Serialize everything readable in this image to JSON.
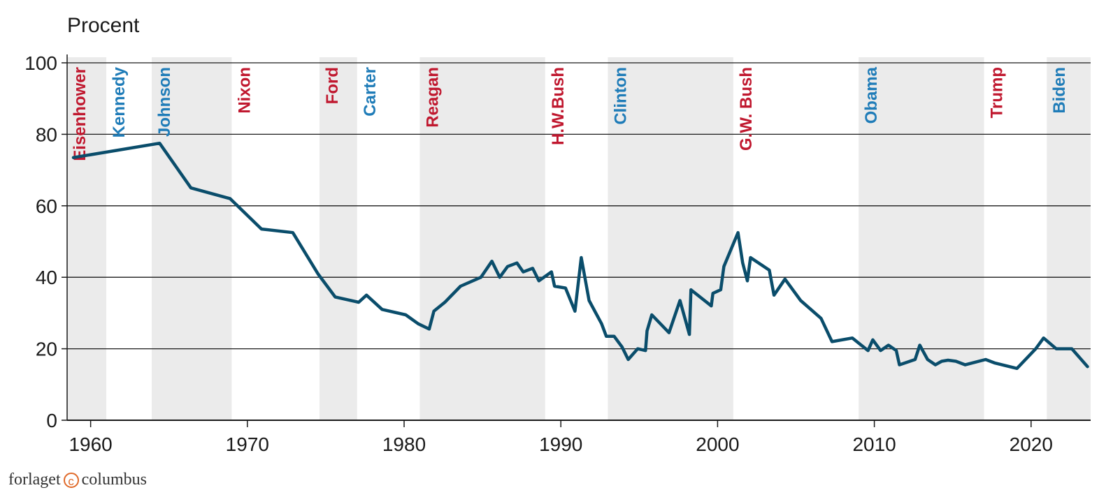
{
  "chart_data": {
    "type": "line",
    "ylabel": "Procent",
    "ylim": [
      0,
      100
    ],
    "xlim": [
      1958.5,
      2023.8
    ],
    "yticks": [
      0,
      20,
      40,
      60,
      80,
      100
    ],
    "xticks": [
      1960,
      1970,
      1980,
      1990,
      2000,
      2010,
      2020
    ],
    "grid": true,
    "colors": {
      "line": "#0a4d6b",
      "republican": "#c0182f",
      "democrat": "#1f7cb8",
      "shade": "#ebebeb"
    },
    "presidents": [
      {
        "name": "Eisenhower",
        "start": 1958.5,
        "end": 1961.0,
        "party": "republican",
        "shaded": true
      },
      {
        "name": "Kennedy",
        "start": 1961.0,
        "end": 1963.9,
        "party": "democrat",
        "shaded": false
      },
      {
        "name": "Johnson",
        "start": 1963.9,
        "end": 1969.0,
        "party": "democrat",
        "shaded": true
      },
      {
        "name": "Nixon",
        "start": 1969.0,
        "end": 1974.6,
        "party": "republican",
        "shaded": false
      },
      {
        "name": "Ford",
        "start": 1974.6,
        "end": 1977.0,
        "party": "republican",
        "shaded": true
      },
      {
        "name": "Carter",
        "start": 1977.0,
        "end": 1981.0,
        "party": "democrat",
        "shaded": false
      },
      {
        "name": "Reagan",
        "start": 1981.0,
        "end": 1989.0,
        "party": "republican",
        "shaded": true
      },
      {
        "name": "H.W.Bush",
        "start": 1989.0,
        "end": 1993.0,
        "party": "republican",
        "shaded": false
      },
      {
        "name": "Clinton",
        "start": 1993.0,
        "end": 2001.0,
        "party": "democrat",
        "shaded": true
      },
      {
        "name": "G.W. Bush",
        "start": 2001.0,
        "end": 2009.0,
        "party": "republican",
        "shaded": false
      },
      {
        "name": "Obama",
        "start": 2009.0,
        "end": 2017.0,
        "party": "democrat",
        "shaded": true
      },
      {
        "name": "Trump",
        "start": 2017.0,
        "end": 2021.0,
        "party": "republican",
        "shaded": false
      },
      {
        "name": "Biden",
        "start": 2021.0,
        "end": 2023.8,
        "party": "democrat",
        "shaded": true
      }
    ],
    "series": [
      {
        "points": [
          [
            1958.9,
            73.5
          ],
          [
            1964.4,
            77.5
          ],
          [
            1966.4,
            65
          ],
          [
            1968.9,
            62
          ],
          [
            1970.9,
            53.5
          ],
          [
            1972.9,
            52.5
          ],
          [
            1974.5,
            41
          ],
          [
            1975.6,
            34.5
          ],
          [
            1977.1,
            33
          ],
          [
            1977.6,
            35
          ],
          [
            1978.6,
            31
          ],
          [
            1980.1,
            29.5
          ],
          [
            1980.9,
            27
          ],
          [
            1981.6,
            25.5
          ],
          [
            1981.9,
            30.5
          ],
          [
            1982.6,
            33
          ],
          [
            1983.6,
            37.5
          ],
          [
            1984.9,
            40
          ],
          [
            1985.6,
            44.5
          ],
          [
            1986.1,
            40
          ],
          [
            1986.6,
            43
          ],
          [
            1987.2,
            44
          ],
          [
            1987.6,
            41.5
          ],
          [
            1988.2,
            42.5
          ],
          [
            1988.6,
            39
          ],
          [
            1989.4,
            41.5
          ],
          [
            1989.6,
            37.5
          ],
          [
            1990.3,
            37
          ],
          [
            1990.9,
            30.5
          ],
          [
            1991.3,
            45.5
          ],
          [
            1991.8,
            33.5
          ],
          [
            1992.6,
            27
          ],
          [
            1992.9,
            23.5
          ],
          [
            1993.4,
            23.5
          ],
          [
            1993.9,
            20.5
          ],
          [
            1994.3,
            17
          ],
          [
            1994.9,
            20
          ],
          [
            1995.4,
            19.5
          ],
          [
            1995.5,
            25
          ],
          [
            1995.8,
            29.5
          ],
          [
            1996.9,
            24.5
          ],
          [
            1997.6,
            33.5
          ],
          [
            1998.2,
            24
          ],
          [
            1998.3,
            36.5
          ],
          [
            1999.6,
            32
          ],
          [
            1999.7,
            35.5
          ],
          [
            2000.2,
            36.5
          ],
          [
            2000.4,
            43
          ],
          [
            2001.3,
            52.5
          ],
          [
            2001.6,
            44
          ],
          [
            2001.9,
            39
          ],
          [
            2002.1,
            45.5
          ],
          [
            2003.3,
            42
          ],
          [
            2003.6,
            35
          ],
          [
            2004.3,
            39.5
          ],
          [
            2005.3,
            33.5
          ],
          [
            2006.6,
            28.5
          ],
          [
            2007.3,
            22
          ],
          [
            2008.6,
            23
          ],
          [
            2009.6,
            19.5
          ],
          [
            2009.9,
            22.5
          ],
          [
            2010.4,
            19.5
          ],
          [
            2010.9,
            21
          ],
          [
            2011.4,
            19.5
          ],
          [
            2011.6,
            15.5
          ],
          [
            2012.6,
            17
          ],
          [
            2012.9,
            21
          ],
          [
            2013.4,
            17
          ],
          [
            2013.9,
            15.5
          ],
          [
            2014.3,
            16.5
          ],
          [
            2014.7,
            16.8
          ],
          [
            2015.2,
            16.5
          ],
          [
            2015.8,
            15.5
          ],
          [
            2017.1,
            17
          ],
          [
            2017.7,
            16
          ],
          [
            2019.1,
            14.5
          ],
          [
            2020.3,
            20
          ],
          [
            2020.8,
            23
          ],
          [
            2021.6,
            20
          ],
          [
            2022.6,
            20
          ],
          [
            2023.6,
            15
          ]
        ]
      }
    ]
  },
  "footer": {
    "brand_left": "forlaget",
    "brand_right": "columbus",
    "icon": "copyright-circle-icon"
  }
}
